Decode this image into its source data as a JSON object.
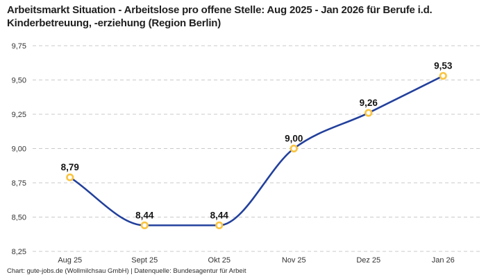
{
  "header": {
    "title": "Arbeitsmarkt Situation - Arbeitslose pro offene Stelle: Aug 2025 - Jan 2026 für Berufe i.d. Kinderbetreuung, -erziehung (Region Berlin)"
  },
  "footer": {
    "credit": "Chart: gute-jobs.de (Wollmilchsau GmbH) | Datenquelle: Bundesagentur für Arbeit"
  },
  "chart_data": {
    "type": "line",
    "title": "Arbeitsmarkt Situation - Arbeitslose pro offene Stelle: Aug 2025 - Jan 2026 für Berufe i.d. Kinderbetreuung, -erziehung (Region Berlin)",
    "categories": [
      "Aug 25",
      "Sept 25",
      "Okt 25",
      "Nov 25",
      "Dez 25",
      "Jan 26"
    ],
    "values": [
      8.79,
      8.44,
      8.44,
      9.0,
      9.26,
      9.53
    ],
    "point_labels": [
      "8,79",
      "8,44",
      "8,44",
      "9,00",
      "9,26",
      "9,53"
    ],
    "ylim": [
      8.25,
      9.75
    ],
    "y_ticks": [
      9.75,
      9.5,
      9.25,
      9.0,
      8.75,
      8.5,
      8.25
    ],
    "y_tick_labels": [
      "9,75",
      "9,50",
      "9,25",
      "9,00",
      "8,75",
      "8,50",
      "8,25"
    ],
    "xlabel": "",
    "ylabel": "",
    "legend": "none",
    "grid": "horizontal-dashed",
    "interpolation": "monotone-spline",
    "line_color": "#22409c",
    "marker_color": "#f9c440",
    "marker_fill": "#ffffff",
    "grid_color": "#c9c9c9",
    "tick_color": "#333333",
    "label_color": "#141414"
  }
}
